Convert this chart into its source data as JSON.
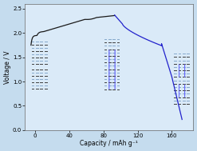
{
  "xlabel": "Capacity / mAh g⁻¹",
  "ylabel": "Voltage / V",
  "xlim": [
    -12,
    185
  ],
  "ylim": [
    0.0,
    2.6
  ],
  "xticks": [
    0,
    40,
    80,
    120,
    160
  ],
  "yticks": [
    0.0,
    0.5,
    1.0,
    1.5,
    2.0,
    2.5
  ],
  "bg_color": "#daeaf8",
  "charge_color": "#1a1a1a",
  "discharge_color": "#2222cc",
  "fig_bg": "#c5dcee",
  "dash_color_dark": "#444444",
  "dash_color_light": "#88aacc",
  "ion_color": "#3333bb",
  "ion_edge": "#6666ff"
}
